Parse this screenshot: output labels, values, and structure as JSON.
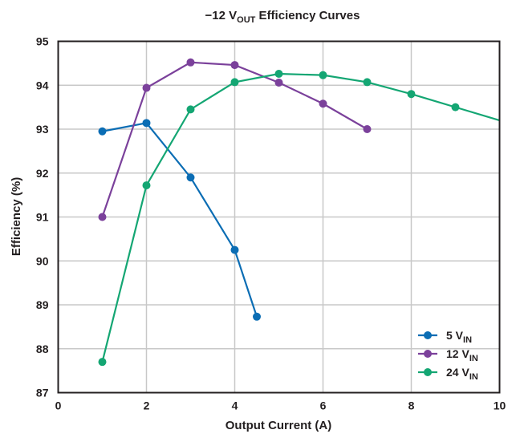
{
  "chart_data": {
    "type": "line",
    "title": "−12 V",
    "title_sub": "OUT",
    "title_rest": " Efficiency Curves",
    "xlabel": "Output Current (A)",
    "ylabel": "Efficiency (%)",
    "xlim": [
      0,
      10
    ],
    "ylim": [
      87,
      95
    ],
    "xticks": [
      0,
      2,
      4,
      6,
      8,
      10
    ],
    "yticks": [
      87,
      88,
      89,
      90,
      91,
      92,
      93,
      94,
      95
    ],
    "grid": true,
    "legend_placement": "bottom-right",
    "series": [
      {
        "name": "5 V",
        "name_sub": "IN",
        "color": "#0b6db4",
        "points": [
          [
            1,
            92.95
          ],
          [
            2,
            93.14
          ],
          [
            3,
            91.9
          ],
          [
            4,
            90.25
          ],
          [
            4.5,
            88.73
          ]
        ]
      },
      {
        "name": "12 V",
        "name_sub": "IN",
        "color": "#7b419b",
        "points": [
          [
            1,
            91.0
          ],
          [
            2,
            93.94
          ],
          [
            3,
            94.52
          ],
          [
            4,
            94.46
          ],
          [
            5,
            94.06
          ],
          [
            6,
            93.58
          ],
          [
            7,
            93.0
          ]
        ]
      },
      {
        "name": "24 V",
        "name_sub": "IN",
        "color": "#14a673",
        "points": [
          [
            1,
            87.7
          ],
          [
            2,
            91.72
          ],
          [
            3,
            93.45
          ],
          [
            4,
            94.07
          ],
          [
            5,
            94.26
          ],
          [
            6,
            94.23
          ],
          [
            7,
            94.07
          ],
          [
            8,
            93.8
          ],
          [
            9,
            93.5
          ],
          [
            10,
            93.2
          ]
        ],
        "unmarked_last": true
      }
    ]
  }
}
